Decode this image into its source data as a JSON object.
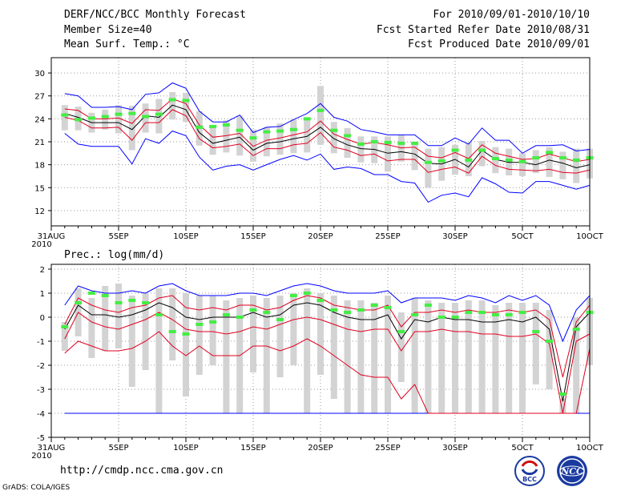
{
  "header": {
    "title": "DERF/NCC/BCC Monthly Forecast",
    "member_size": "Member Size=40",
    "variable": "Mean Surf. Temp.: °C",
    "period": "For 2010/09/01-2010/10/10",
    "started": "Fcst Started Refer Date 2010/08/31",
    "produced": "Fcst Produced Date 2010/09/01"
  },
  "footer": {
    "url": "http://cmdp.ncc.cma.gov.cn",
    "credit": "GrADS: COLA/IGES",
    "logo_bcc": "BCC",
    "logo_ncc": "NCC"
  },
  "colors": {
    "ensemble_mean": "#000000",
    "envelope": "#0000ff",
    "quartile": "#e00020",
    "bar": "#d3d3d3",
    "observed": "#44ee44",
    "grid": "#9a9a9a"
  },
  "chart_data": [
    {
      "type": "ensemble_plume",
      "title": "Mean Surf. Temp.: °C",
      "xlabel": "",
      "ylabel": "",
      "ylim": [
        10,
        32
      ],
      "yticks": [
        12,
        15,
        18,
        21,
        24,
        27,
        30
      ],
      "xticks": [
        {
          "day": 0,
          "label": "31AUG",
          "sub": "2010"
        },
        {
          "day": 5,
          "label": "5SEP"
        },
        {
          "day": 10,
          "label": "10SEP"
        },
        {
          "day": 15,
          "label": "15SEP"
        },
        {
          "day": 20,
          "label": "20SEP"
        },
        {
          "day": 25,
          "label": "25SEP"
        },
        {
          "day": 30,
          "label": "30SEP"
        },
        {
          "day": 35,
          "label": "5OCT"
        },
        {
          "day": 40,
          "label": "10OCT"
        }
      ],
      "days": [
        1,
        2,
        3,
        4,
        5,
        6,
        7,
        8,
        9,
        10,
        11,
        12,
        13,
        14,
        15,
        16,
        17,
        18,
        19,
        20,
        21,
        22,
        23,
        24,
        25,
        26,
        27,
        28,
        29,
        30,
        31,
        32,
        33,
        34,
        35,
        36,
        37,
        38,
        39,
        40
      ],
      "series": [
        {
          "name": "max",
          "values": [
            27.3,
            27.0,
            25.5,
            25.5,
            25.6,
            25.2,
            27.2,
            27.4,
            28.7,
            28.0,
            25.0,
            23.6,
            23.6,
            24.5,
            22.2,
            22.9,
            23.0,
            23.9,
            24.7,
            26.0,
            24.2,
            23.7,
            22.6,
            22.3,
            21.9,
            21.9,
            21.9,
            20.5,
            20.5,
            21.5,
            20.7,
            22.8,
            21.2,
            21.2,
            19.5,
            20.5,
            20.5,
            20.6,
            19.8,
            20.0
          ]
        },
        {
          "name": "upper",
          "values": [
            25.3,
            25.1,
            24.0,
            24.0,
            24.1,
            23.4,
            25.2,
            25.1,
            26.6,
            26.0,
            23.2,
            21.6,
            21.8,
            22.1,
            20.4,
            21.2,
            21.5,
            21.9,
            22.3,
            23.7,
            22.0,
            21.3,
            20.7,
            20.9,
            20.6,
            20.2,
            20.3,
            19.1,
            18.9,
            19.6,
            18.8,
            20.6,
            19.5,
            19.1,
            18.7,
            18.8,
            19.4,
            18.9,
            18.4,
            18.7
          ]
        },
        {
          "name": "mean",
          "values": [
            24.7,
            24.2,
            23.5,
            23.5,
            23.5,
            22.6,
            24.4,
            24.2,
            25.8,
            25.2,
            22.2,
            20.8,
            21.2,
            21.6,
            19.9,
            20.8,
            21.0,
            21.4,
            21.7,
            22.9,
            21.4,
            20.6,
            20.1,
            20.0,
            19.5,
            19.7,
            19.4,
            18.2,
            18.1,
            18.7,
            17.7,
            19.9,
            18.7,
            18.3,
            18.3,
            18.0,
            18.6,
            18.2,
            17.6,
            18.0
          ]
        },
        {
          "name": "lower",
          "values": [
            24.2,
            23.8,
            22.8,
            22.8,
            22.9,
            21.2,
            23.5,
            23.5,
            25.2,
            24.4,
            21.4,
            20.2,
            20.4,
            20.7,
            19.2,
            20.1,
            20.1,
            20.6,
            20.8,
            22.2,
            20.3,
            19.9,
            19.2,
            19.4,
            18.5,
            18.7,
            18.7,
            17.0,
            17.4,
            17.7,
            16.9,
            19.1,
            17.9,
            17.4,
            17.3,
            17.2,
            17.4,
            17.0,
            16.9,
            17.3
          ]
        },
        {
          "name": "min",
          "values": [
            22.1,
            20.7,
            20.4,
            20.4,
            20.4,
            18.1,
            21.4,
            20.8,
            22.4,
            21.8,
            19.0,
            17.3,
            17.8,
            18.0,
            17.3,
            18.0,
            18.7,
            19.2,
            18.6,
            19.4,
            17.4,
            17.7,
            17.5,
            16.7,
            16.7,
            15.8,
            15.6,
            13.1,
            14.0,
            14.3,
            13.8,
            16.3,
            15.5,
            14.4,
            14.3,
            15.8,
            15.8,
            15.3,
            14.8,
            15.3
          ]
        }
      ],
      "bars": [
        [
          22.5,
          25.8
        ],
        [
          22.5,
          25.6
        ],
        [
          22.2,
          24.8
        ],
        [
          22.6,
          25.2
        ],
        [
          22.1,
          25.8
        ],
        [
          19.9,
          25.7
        ],
        [
          22.2,
          26.0
        ],
        [
          22.1,
          26.6
        ],
        [
          23.9,
          27.5
        ],
        [
          23.6,
          27.4
        ],
        [
          20.5,
          25.0
        ],
        [
          19.3,
          23.2
        ],
        [
          19.6,
          23.8
        ],
        [
          19.2,
          24.4
        ],
        [
          18.4,
          22.6
        ],
        [
          19.1,
          22.9
        ],
        [
          19.3,
          23.4
        ],
        [
          19.5,
          23.9
        ],
        [
          19.6,
          24.1
        ],
        [
          20.6,
          28.3
        ],
        [
          19.5,
          23.6
        ],
        [
          18.9,
          22.8
        ],
        [
          18.3,
          21.7
        ],
        [
          18.2,
          21.7
        ],
        [
          17.1,
          21.7
        ],
        [
          18.4,
          21.9
        ],
        [
          17.3,
          21.0
        ],
        [
          15.0,
          20.1
        ],
        [
          15.9,
          20.3
        ],
        [
          16.7,
          20.6
        ],
        [
          16.5,
          20.9
        ],
        [
          17.8,
          21.1
        ],
        [
          16.9,
          20.3
        ],
        [
          16.6,
          20.1
        ],
        [
          16.5,
          19.5
        ],
        [
          16.9,
          19.9
        ],
        [
          16.4,
          20.3
        ],
        [
          16.1,
          19.7
        ],
        [
          15.6,
          20.1
        ],
        [
          16.2,
          20.1
        ]
      ],
      "observed": [
        24.5,
        23.9,
        24.1,
        24.3,
        24.6,
        24.7,
        24.3,
        24.6,
        26.5,
        26.4,
        22.9,
        23.0,
        23.2,
        22.5,
        21.5,
        22.3,
        22.4,
        22.6,
        24.0,
        25.1,
        22.5,
        21.8,
        20.7,
        21.0,
        20.9,
        20.8,
        20.8,
        18.3,
        18.5,
        19.9,
        18.6,
        19.9,
        18.8,
        18.6,
        18.4,
        18.9,
        19.6,
        18.9,
        18.6,
        18.9
      ]
    },
    {
      "type": "ensemble_plume",
      "title": "Prec.: log(mm/d)",
      "xlabel": "",
      "ylabel": "",
      "ylim": [
        -5,
        2.2
      ],
      "yticks": [
        -5,
        -4,
        -3,
        -2,
        -1,
        0,
        1,
        2
      ],
      "xticks": [
        {
          "day": 0,
          "label": "31AUG",
          "sub": "2010"
        },
        {
          "day": 5,
          "label": "5SEP"
        },
        {
          "day": 10,
          "label": "10SEP"
        },
        {
          "day": 15,
          "label": "15SEP"
        },
        {
          "day": 20,
          "label": "20SEP"
        },
        {
          "day": 25,
          "label": "25SEP"
        },
        {
          "day": 30,
          "label": "30SEP"
        },
        {
          "day": 35,
          "label": "5OCT"
        },
        {
          "day": 40,
          "label": "10OCT"
        }
      ],
      "days": [
        1,
        2,
        3,
        4,
        5,
        6,
        7,
        8,
        9,
        10,
        11,
        12,
        13,
        14,
        15,
        16,
        17,
        18,
        19,
        20,
        21,
        22,
        23,
        24,
        25,
        26,
        27,
        28,
        29,
        30,
        31,
        32,
        33,
        34,
        35,
        36,
        37,
        38,
        39,
        40
      ],
      "series": [
        {
          "name": "max",
          "values": [
            0.5,
            1.3,
            1.1,
            1.0,
            1.0,
            1.1,
            1.0,
            1.3,
            1.4,
            1.1,
            0.9,
            0.9,
            0.9,
            1.0,
            1.0,
            0.9,
            1.1,
            1.3,
            1.4,
            1.3,
            1.1,
            1.0,
            1.0,
            1.0,
            1.1,
            0.6,
            0.8,
            0.8,
            0.8,
            0.7,
            0.9,
            0.8,
            0.6,
            0.9,
            0.7,
            0.9,
            0.5,
            -1.0,
            0.3,
            0.9
          ]
        },
        {
          "name": "upper",
          "values": [
            -0.3,
            0.8,
            0.5,
            0.3,
            0.2,
            0.4,
            0.5,
            0.8,
            0.9,
            0.4,
            0.3,
            0.4,
            0.3,
            0.5,
            0.5,
            0.3,
            0.4,
            0.7,
            0.9,
            0.8,
            0.5,
            0.4,
            0.3,
            0.3,
            0.5,
            -0.4,
            0.2,
            0.2,
            0.3,
            0.2,
            0.3,
            0.2,
            0.2,
            0.3,
            0.2,
            0.3,
            -0.1,
            -2.5,
            -0.2,
            0.5
          ]
        },
        {
          "name": "mean",
          "values": [
            -0.5,
            0.5,
            0.1,
            0.1,
            0.0,
            0.1,
            0.3,
            0.6,
            0.4,
            0.0,
            -0.1,
            0.0,
            0.0,
            0.0,
            0.2,
            0.0,
            0.1,
            0.5,
            0.6,
            0.5,
            0.2,
            0.0,
            -0.1,
            -0.1,
            0.1,
            -0.9,
            -0.1,
            -0.2,
            0.0,
            -0.1,
            -0.1,
            -0.2,
            -0.2,
            -0.1,
            -0.2,
            0.0,
            -0.5,
            -3.5,
            -0.4,
            0.2
          ]
        },
        {
          "name": "lower",
          "values": [
            -0.9,
            0.2,
            -0.2,
            -0.4,
            -0.5,
            -0.3,
            -0.1,
            0.2,
            -0.1,
            -0.5,
            -0.6,
            -0.6,
            -0.7,
            -0.6,
            -0.4,
            -0.5,
            -0.3,
            -0.1,
            0.0,
            -0.1,
            -0.3,
            -0.5,
            -0.6,
            -0.5,
            -0.5,
            -1.4,
            -0.6,
            -0.6,
            -0.5,
            -0.6,
            -0.6,
            -0.7,
            -0.7,
            -0.8,
            -0.8,
            -0.7,
            -1.1,
            -4.0,
            -1.0,
            -0.7
          ]
        },
        {
          "name": "min",
          "values": [
            -4.0,
            -4.0,
            -4.0,
            -4.0,
            -4.0,
            -4.0,
            -4.0,
            -4.0,
            -4.0,
            -4.0,
            -4.0,
            -4.0,
            -4.0,
            -4.0,
            -4.0,
            -4.0,
            -4.0,
            -4.0,
            -4.0,
            -4.0,
            -4.0,
            -4.0,
            -4.0,
            -4.0,
            -4.0,
            -4.0,
            -4.0,
            -4.0,
            -4.0,
            -4.0,
            -4.0,
            -4.0,
            -4.0,
            -4.0,
            -4.0,
            -4.0,
            -4.0,
            -4.0,
            -4.0,
            -4.0
          ]
        },
        {
          "name": "q10",
          "values": [
            -1.5,
            -1.0,
            -1.2,
            -1.4,
            -1.4,
            -1.3,
            -1.0,
            -0.6,
            -1.2,
            -1.6,
            -1.2,
            -1.6,
            -1.6,
            -1.6,
            -1.2,
            -1.2,
            -1.4,
            -1.2,
            -0.9,
            -1.2,
            -1.6,
            -2.0,
            -2.4,
            -2.5,
            -2.5,
            -3.4,
            -2.8,
            -4.0,
            -4.0,
            -4.0,
            -4.0,
            -4.0,
            -4.0,
            -4.0,
            -4.0,
            -4.0,
            -4.0,
            -4.0,
            -4.0,
            -1.3
          ]
        }
      ],
      "bars": [
        [
          -1.4,
          -0.2
        ],
        [
          -0.8,
          1.2
        ],
        [
          -1.7,
          0.8
        ],
        [
          -1.4,
          1.3
        ],
        [
          -1.3,
          1.4
        ],
        [
          -2.9,
          0.9
        ],
        [
          -2.2,
          1.0
        ],
        [
          -4.0,
          1.2
        ],
        [
          -1.8,
          1.2
        ],
        [
          -3.3,
          1.0
        ],
        [
          -2.4,
          0.9
        ],
        [
          -2.0,
          0.9
        ],
        [
          -4.0,
          0.7
        ],
        [
          -4.0,
          0.8
        ],
        [
          -2.3,
          0.9
        ],
        [
          -4.0,
          0.8
        ],
        [
          -2.5,
          0.9
        ],
        [
          -2.0,
          1.0
        ],
        [
          -4.0,
          1.2
        ],
        [
          -2.4,
          1.0
        ],
        [
          -3.4,
          0.9
        ],
        [
          -4.0,
          0.7
        ],
        [
          -4.0,
          0.7
        ],
        [
          -4.0,
          0.6
        ],
        [
          -4.0,
          0.9
        ],
        [
          -2.7,
          0.2
        ],
        [
          -4.0,
          0.8
        ],
        [
          -4.0,
          0.7
        ],
        [
          -4.0,
          0.6
        ],
        [
          -4.0,
          0.6
        ],
        [
          -4.0,
          0.7
        ],
        [
          -4.0,
          0.7
        ],
        [
          -4.0,
          0.5
        ],
        [
          -4.0,
          0.6
        ],
        [
          -4.0,
          0.6
        ],
        [
          -2.8,
          0.6
        ],
        [
          -3.0,
          0.3
        ],
        [
          -4.0,
          -3.4
        ],
        [
          -4.0,
          0.0
        ],
        [
          -2.0,
          0.8
        ]
      ],
      "observed": [
        -0.4,
        0.6,
        1.0,
        0.9,
        0.6,
        0.7,
        0.6,
        0.1,
        -0.6,
        -0.7,
        -0.3,
        -0.2,
        0.1,
        0.0,
        0.3,
        0.2,
        -0.1,
        0.9,
        1.0,
        0.7,
        0.3,
        0.2,
        0.3,
        0.5,
        0.4,
        -0.6,
        0.1,
        0.5,
        0.0,
        0.0,
        0.2,
        0.2,
        0.1,
        0.1,
        0.2,
        -0.6,
        -1.0,
        -3.2,
        -0.5,
        0.2
      ]
    }
  ]
}
